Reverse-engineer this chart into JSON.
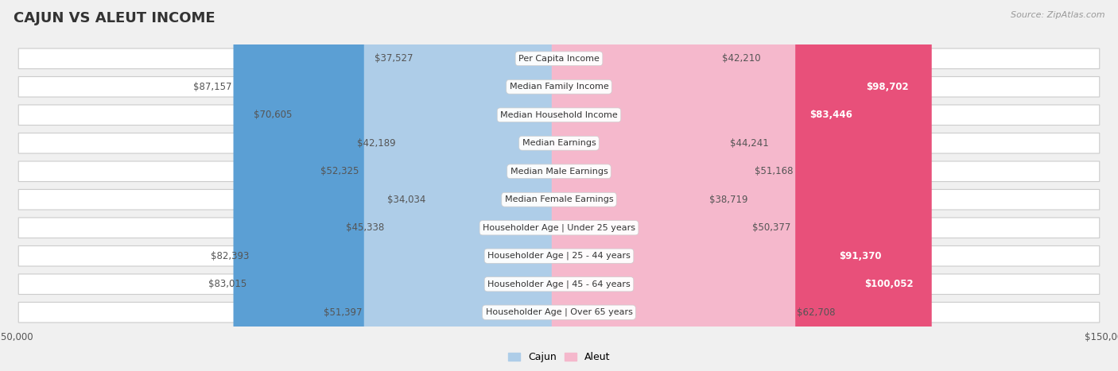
{
  "title": "CAJUN VS ALEUT INCOME",
  "source": "Source: ZipAtlas.com",
  "categories": [
    "Per Capita Income",
    "Median Family Income",
    "Median Household Income",
    "Median Earnings",
    "Median Male Earnings",
    "Median Female Earnings",
    "Householder Age | Under 25 years",
    "Householder Age | 25 - 44 years",
    "Householder Age | 45 - 64 years",
    "Householder Age | Over 65 years"
  ],
  "cajun_values": [
    37527,
    87157,
    70605,
    42189,
    52325,
    34034,
    45338,
    82393,
    83015,
    51397
  ],
  "aleut_values": [
    42210,
    98702,
    83446,
    44241,
    51168,
    38719,
    50377,
    91370,
    100052,
    62708
  ],
  "cajun_labels": [
    "$37,527",
    "$87,157",
    "$70,605",
    "$42,189",
    "$52,325",
    "$34,034",
    "$45,338",
    "$82,393",
    "$83,015",
    "$51,397"
  ],
  "aleut_labels": [
    "$42,210",
    "$98,702",
    "$83,446",
    "$44,241",
    "$51,168",
    "$38,719",
    "$50,377",
    "$91,370",
    "$100,052",
    "$62,708"
  ],
  "cajun_color_light": "#aecde8",
  "cajun_color_dark": "#5b9fd4",
  "aleut_color_light": "#f5b8cc",
  "aleut_color_dark": "#e8507a",
  "cajun_threshold": 60000,
  "aleut_threshold": 70000,
  "max_value": 150000,
  "background_color": "#f0f0f0",
  "row_bg_color": "#ffffff",
  "row_border_color": "#cccccc",
  "title_fontsize": 13,
  "label_fontsize": 8.5,
  "category_fontsize": 8,
  "legend_fontsize": 9,
  "source_fontsize": 8
}
